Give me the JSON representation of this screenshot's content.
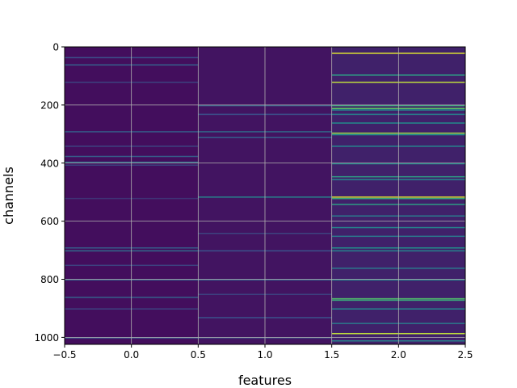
{
  "chart_data": {
    "type": "heatmap",
    "title": "",
    "xlabel": "features",
    "ylabel": "channels",
    "xlim": [
      -0.5,
      2.5
    ],
    "ylim": [
      1024,
      0
    ],
    "x_ticks": [
      -0.5,
      0.0,
      0.5,
      1.0,
      1.5,
      2.0,
      2.5
    ],
    "x_tick_labels": [
      "−0.5",
      "0.0",
      "0.5",
      "1.0",
      "1.5",
      "2.0",
      "2.5"
    ],
    "y_ticks": [
      0,
      200,
      400,
      600,
      800,
      1000
    ],
    "y_tick_labels": [
      "0",
      "200",
      "400",
      "600",
      "800",
      "1000"
    ],
    "grid": true,
    "colormap": "viridis",
    "columns": [
      {
        "feature": 0,
        "base_level": 0.04,
        "highlights": [
          {
            "channel": 35,
            "value": 0.25
          },
          {
            "channel": 60,
            "value": 0.3
          },
          {
            "channel": 120,
            "value": 0.2
          },
          {
            "channel": 290,
            "value": 0.3
          },
          {
            "channel": 340,
            "value": 0.2
          },
          {
            "channel": 375,
            "value": 0.3
          },
          {
            "channel": 395,
            "value": 0.35
          },
          {
            "channel": 405,
            "value": 0.2
          },
          {
            "channel": 520,
            "value": 0.15
          },
          {
            "channel": 690,
            "value": 0.3
          },
          {
            "channel": 700,
            "value": 0.35
          },
          {
            "channel": 750,
            "value": 0.2
          },
          {
            "channel": 800,
            "value": 0.3
          },
          {
            "channel": 860,
            "value": 0.3
          },
          {
            "channel": 900,
            "value": 0.2
          },
          {
            "channel": 1000,
            "value": 0.25
          }
        ]
      },
      {
        "feature": 1,
        "base_level": 0.06,
        "highlights": [
          {
            "channel": 200,
            "value": 0.3
          },
          {
            "channel": 230,
            "value": 0.25
          },
          {
            "channel": 290,
            "value": 0.35
          },
          {
            "channel": 310,
            "value": 0.3
          },
          {
            "channel": 515,
            "value": 0.45
          },
          {
            "channel": 640,
            "value": 0.2
          },
          {
            "channel": 700,
            "value": 0.25
          },
          {
            "channel": 800,
            "value": 0.3
          },
          {
            "channel": 850,
            "value": 0.2
          },
          {
            "channel": 930,
            "value": 0.25
          },
          {
            "channel": 1000,
            "value": 0.2
          }
        ]
      },
      {
        "feature": 2,
        "base_level": 0.1,
        "highlights": [
          {
            "channel": 20,
            "value": 0.95
          },
          {
            "channel": 95,
            "value": 0.55
          },
          {
            "channel": 120,
            "value": 0.9
          },
          {
            "channel": 200,
            "value": 0.6
          },
          {
            "channel": 210,
            "value": 0.75
          },
          {
            "channel": 215,
            "value": 0.5
          },
          {
            "channel": 230,
            "value": 0.45
          },
          {
            "channel": 260,
            "value": 0.5
          },
          {
            "channel": 295,
            "value": 0.85
          },
          {
            "channel": 300,
            "value": 0.5
          },
          {
            "channel": 340,
            "value": 0.45
          },
          {
            "channel": 400,
            "value": 0.5
          },
          {
            "channel": 445,
            "value": 0.55
          },
          {
            "channel": 455,
            "value": 0.45
          },
          {
            "channel": 515,
            "value": 0.95
          },
          {
            "channel": 520,
            "value": 0.6
          },
          {
            "channel": 540,
            "value": 0.55
          },
          {
            "channel": 580,
            "value": 0.4
          },
          {
            "channel": 620,
            "value": 0.45
          },
          {
            "channel": 650,
            "value": 0.4
          },
          {
            "channel": 690,
            "value": 0.5
          },
          {
            "channel": 700,
            "value": 0.45
          },
          {
            "channel": 760,
            "value": 0.4
          },
          {
            "channel": 800,
            "value": 0.45
          },
          {
            "channel": 865,
            "value": 0.7
          },
          {
            "channel": 870,
            "value": 0.6
          },
          {
            "channel": 900,
            "value": 0.45
          },
          {
            "channel": 950,
            "value": 0.4
          },
          {
            "channel": 985,
            "value": 0.9
          },
          {
            "channel": 1010,
            "value": 0.45
          }
        ]
      }
    ]
  }
}
